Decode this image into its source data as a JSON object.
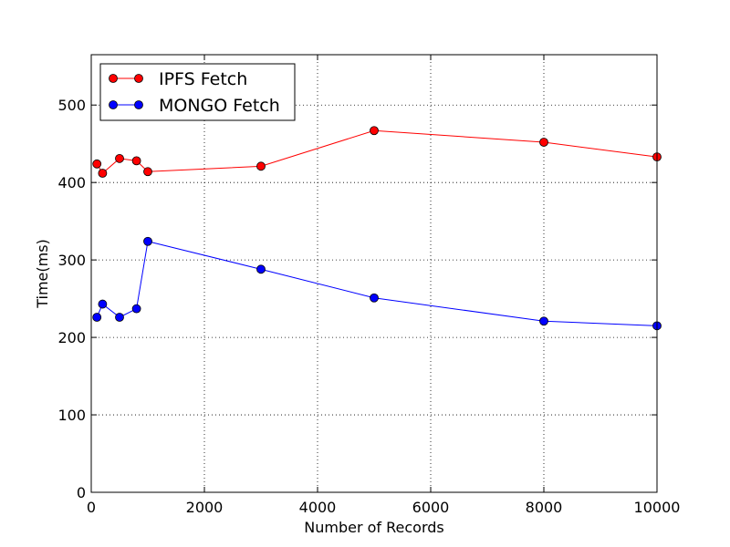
{
  "chart_data": {
    "type": "line",
    "title": "",
    "xlabel": "Number of Records",
    "ylabel": "Time(ms)",
    "xlim": [
      0,
      10000
    ],
    "ylim": [
      0,
      565
    ],
    "xticks": [
      0,
      2000,
      4000,
      6000,
      8000,
      10000
    ],
    "xtick_labels": [
      "0",
      "2000",
      "4000",
      "6000",
      "8000",
      "10000"
    ],
    "yticks": [
      0,
      100,
      200,
      300,
      400,
      500
    ],
    "ytick_labels": [
      "0",
      "100",
      "200",
      "300",
      "400",
      "500"
    ],
    "grid": true,
    "legend_position": "top-left",
    "x": [
      100,
      200,
      500,
      800,
      1000,
      3000,
      5000,
      8000,
      10000
    ],
    "series": [
      {
        "name": "IPFS Fetch",
        "color": "#ff0000",
        "values": [
          424,
          412,
          431,
          428,
          414,
          421,
          467,
          452,
          433
        ]
      },
      {
        "name": "MONGO Fetch",
        "color": "#0000ff",
        "values": [
          226,
          243,
          226,
          237,
          324,
          288,
          251,
          221,
          215
        ]
      }
    ]
  }
}
